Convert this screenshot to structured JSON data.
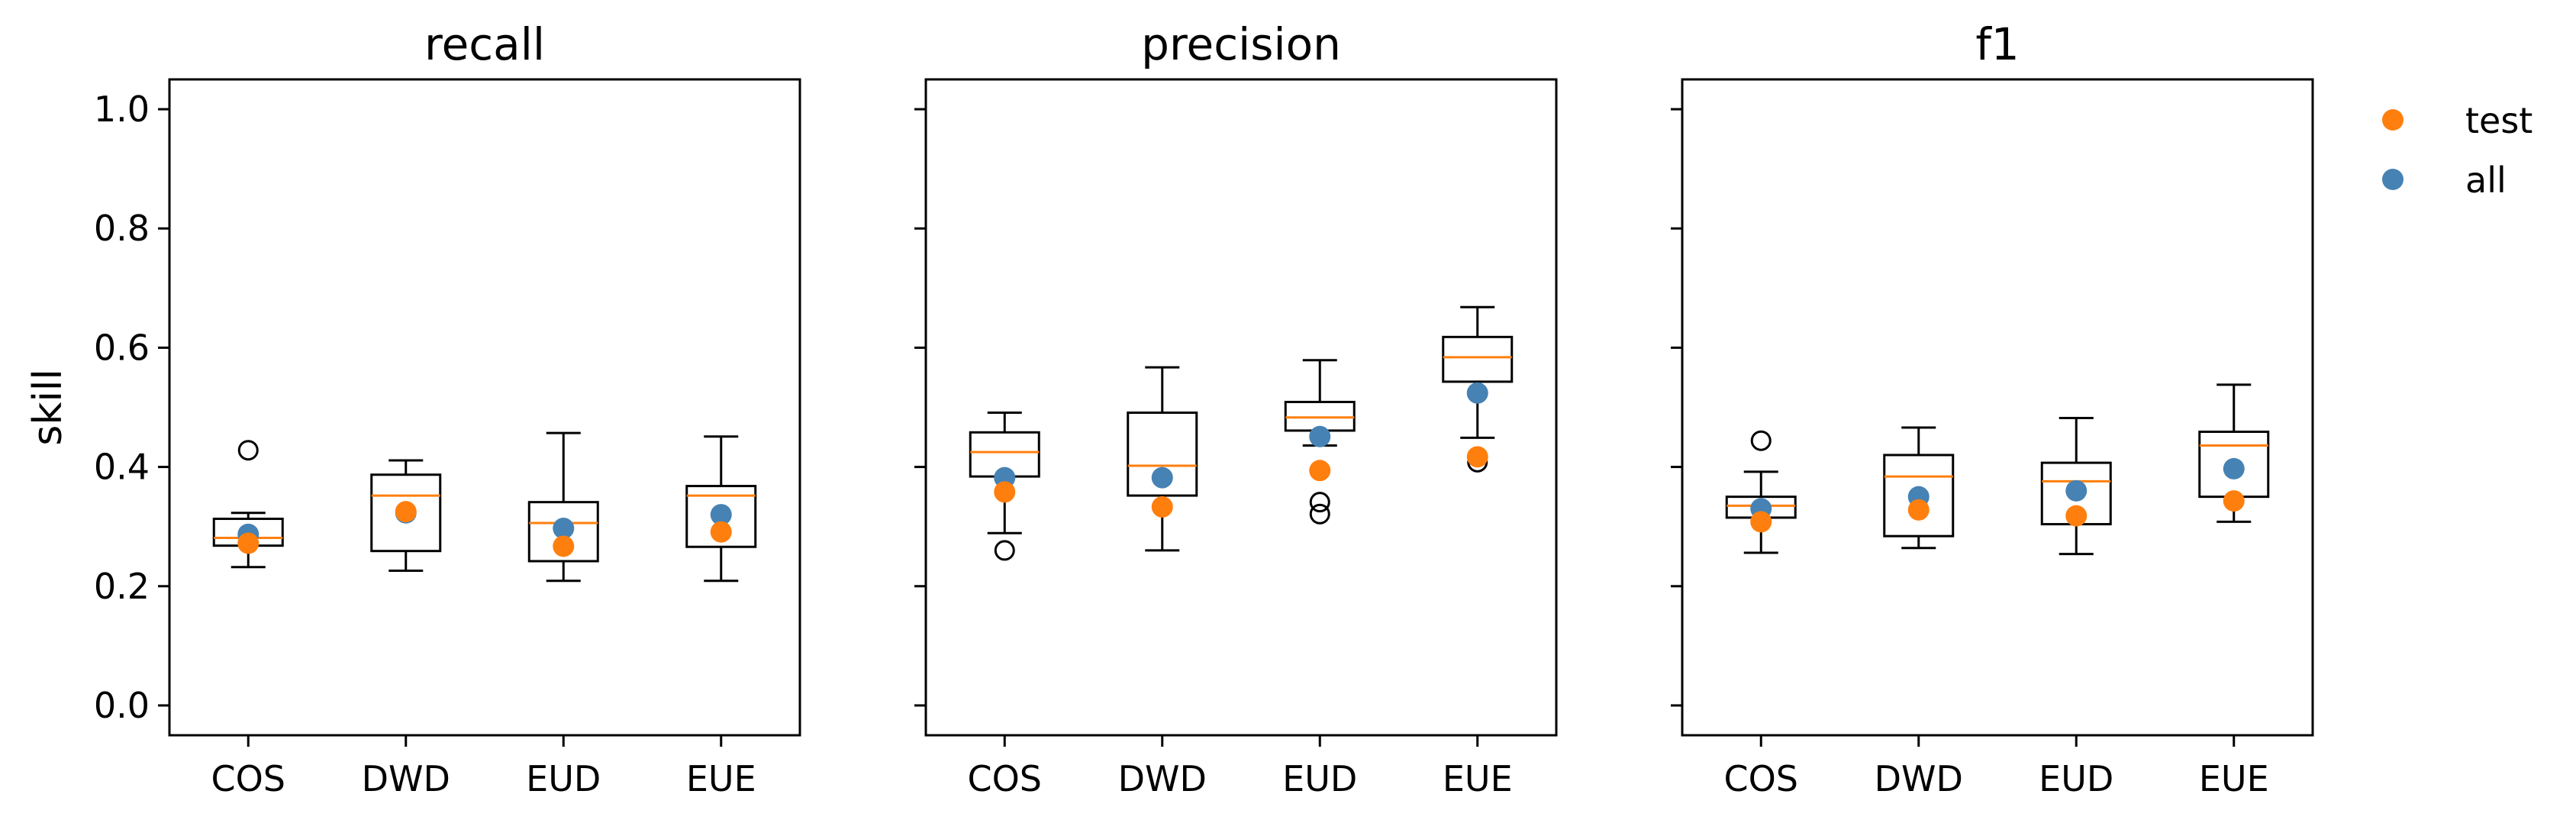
{
  "chart_data": {
    "type": "box",
    "ylabel": "skill",
    "ylim": [
      -0.05,
      1.05
    ],
    "yticks": [
      0.0,
      0.2,
      0.4,
      0.6,
      0.8,
      1.0
    ],
    "categories": [
      "COS",
      "DWD",
      "EUD",
      "EUE"
    ],
    "legend": {
      "placement": "top-right-outside",
      "entries": [
        {
          "key": "test",
          "label": "test",
          "color": "#ff7f0e"
        },
        {
          "key": "all",
          "label": "all",
          "color": "#4682b4"
        }
      ]
    },
    "colors": {
      "median": "#ff7f0e",
      "test": "#ff7f0e",
      "all": "#4682b4",
      "box": "#000000"
    },
    "panels": [
      {
        "title": "recall",
        "show_ytick_labels": true,
        "boxes": [
          {
            "category": "COS",
            "whislo": 0.232,
            "q1": 0.268,
            "med": 0.281,
            "q3": 0.313,
            "whishi": 0.323,
            "fliers": [
              0.428
            ],
            "test": 0.272,
            "all": 0.287
          },
          {
            "category": "DWD",
            "whislo": 0.226,
            "q1": 0.259,
            "med": 0.352,
            "q3": 0.387,
            "whishi": 0.411,
            "fliers": [],
            "test": 0.325,
            "all": 0.323
          },
          {
            "category": "EUD",
            "whislo": 0.209,
            "q1": 0.242,
            "med": 0.306,
            "q3": 0.341,
            "whishi": 0.457,
            "fliers": [],
            "test": 0.267,
            "all": 0.297
          },
          {
            "category": "EUE",
            "whislo": 0.209,
            "q1": 0.266,
            "med": 0.352,
            "q3": 0.368,
            "whishi": 0.451,
            "fliers": [],
            "test": 0.291,
            "all": 0.32
          }
        ]
      },
      {
        "title": "precision",
        "show_ytick_labels": false,
        "boxes": [
          {
            "category": "COS",
            "whislo": 0.289,
            "q1": 0.384,
            "med": 0.425,
            "q3": 0.458,
            "whishi": 0.491,
            "fliers": [
              0.26
            ],
            "test": 0.358,
            "all": 0.382
          },
          {
            "category": "DWD",
            "whislo": 0.26,
            "q1": 0.352,
            "med": 0.402,
            "q3": 0.491,
            "whishi": 0.567,
            "fliers": [],
            "test": 0.333,
            "all": 0.382
          },
          {
            "category": "EUD",
            "whislo": 0.436,
            "q1": 0.461,
            "med": 0.483,
            "q3": 0.509,
            "whishi": 0.579,
            "fliers": [
              0.341,
              0.321
            ],
            "test": 0.394,
            "all": 0.451
          },
          {
            "category": "EUE",
            "whislo": 0.449,
            "q1": 0.543,
            "med": 0.584,
            "q3": 0.618,
            "whishi": 0.668,
            "fliers": [
              0.408
            ],
            "test": 0.417,
            "all": 0.524
          }
        ]
      },
      {
        "title": "f1",
        "show_ytick_labels": false,
        "boxes": [
          {
            "category": "COS",
            "whislo": 0.256,
            "q1": 0.315,
            "med": 0.335,
            "q3": 0.35,
            "whishi": 0.392,
            "fliers": [
              0.444
            ],
            "test": 0.308,
            "all": 0.33
          },
          {
            "category": "DWD",
            "whislo": 0.264,
            "q1": 0.284,
            "med": 0.384,
            "q3": 0.42,
            "whishi": 0.466,
            "fliers": [],
            "test": 0.328,
            "all": 0.35
          },
          {
            "category": "EUD",
            "whislo": 0.254,
            "q1": 0.304,
            "med": 0.376,
            "q3": 0.407,
            "whishi": 0.482,
            "fliers": [],
            "test": 0.318,
            "all": 0.36
          },
          {
            "category": "EUE",
            "whislo": 0.308,
            "q1": 0.35,
            "med": 0.436,
            "q3": 0.459,
            "whishi": 0.538,
            "fliers": [],
            "test": 0.343,
            "all": 0.397
          }
        ]
      }
    ]
  }
}
